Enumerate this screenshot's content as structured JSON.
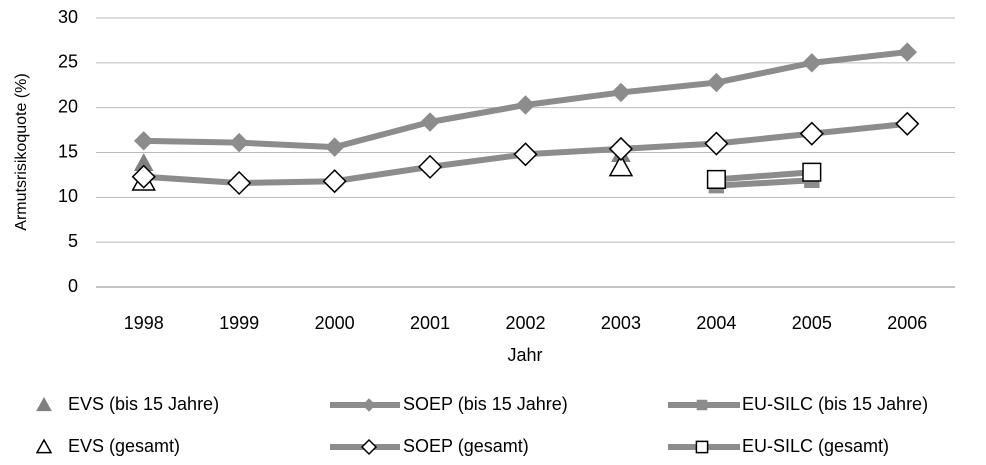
{
  "chart_data": {
    "type": "line",
    "y_label": "Armutsrisikoquote (%)",
    "x_label": "Jahr",
    "categories": [
      "1998",
      "1999",
      "2000",
      "2001",
      "2002",
      "2003",
      "2004",
      "2005",
      "2006"
    ],
    "ylim": [
      0,
      30
    ],
    "yticks": [
      0,
      5,
      10,
      15,
      20,
      25,
      30
    ],
    "grid": true,
    "series": [
      {
        "name": "EVS (bis 15 Jahre)",
        "color": "#808080",
        "marker": "triangle",
        "filled": true,
        "line": false,
        "values": [
          13.8,
          null,
          null,
          null,
          null,
          14.8,
          null,
          null,
          null
        ]
      },
      {
        "name": "SOEP (bis 15 Jahre)",
        "color": "#8c8c8c",
        "marker": "diamond",
        "filled": true,
        "line": true,
        "values": [
          16.3,
          16.1,
          15.6,
          18.4,
          20.3,
          21.7,
          22.8,
          25.0,
          26.2
        ]
      },
      {
        "name": "EU-SILC (bis 15 Jahre)",
        "color": "#8c8c8c",
        "marker": "square",
        "filled": true,
        "line": true,
        "values": [
          null,
          null,
          null,
          null,
          null,
          null,
          11.3,
          11.9,
          null
        ]
      },
      {
        "name": "EVS (gesamt)",
        "color": "#808080",
        "marker": "triangle",
        "filled": false,
        "line": false,
        "values": [
          11.8,
          null,
          null,
          null,
          null,
          13.4,
          null,
          null,
          null
        ]
      },
      {
        "name": "SOEP (gesamt)",
        "color": "#8c8c8c",
        "marker": "diamond",
        "filled": false,
        "line": true,
        "values": [
          12.3,
          11.6,
          11.8,
          13.4,
          14.8,
          15.4,
          16.0,
          17.1,
          18.2
        ]
      },
      {
        "name": "EU-SILC (gesamt)",
        "color": "#8c8c8c",
        "marker": "square",
        "filled": false,
        "line": true,
        "values": [
          null,
          null,
          null,
          null,
          null,
          null,
          12.0,
          12.8,
          null
        ]
      }
    ]
  }
}
